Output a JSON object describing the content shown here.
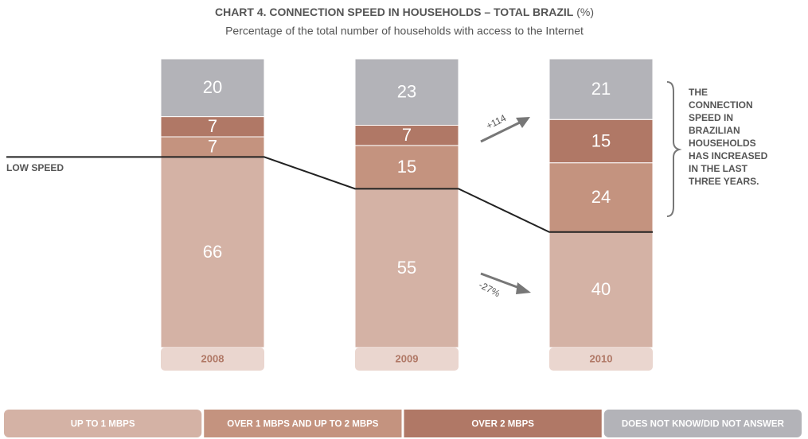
{
  "chart_data": {
    "type": "stacked_bar",
    "title": "CHART 4. CONNECTION SPEED IN HOUSEHOLDS – TOTAL BRAZIL",
    "title_unit": "(%)",
    "subtitle": "Percentage of the total number of households with access to the Internet",
    "categories": [
      "2008",
      "2009",
      "2010"
    ],
    "series": [
      {
        "name": "UP TO 1 MBPS",
        "color": "#d4b2a5",
        "values": [
          66,
          55,
          40
        ]
      },
      {
        "name": "OVER 1 MBPS AND UP TO 2 MBPS",
        "color": "#c4937f",
        "values": [
          7,
          15,
          24
        ]
      },
      {
        "name": "OVER 2 MBPS",
        "color": "#b07866",
        "values": [
          7,
          7,
          15
        ]
      },
      {
        "name": "DOES NOT KNOW/DID NOT ANSWER",
        "color": "#b3b3b8",
        "values": [
          20,
          23,
          21
        ]
      }
    ],
    "ylim": [
      0,
      100
    ],
    "annotations": {
      "line_label": "LOW SPEED",
      "increase": "+114",
      "decrease": "-27%",
      "note": [
        "THE",
        "CONNECTION",
        "SPEED IN",
        "BRAZILIAN",
        "HOUSEHOLDS",
        "HAS INCREASED",
        "IN THE LAST",
        "THREE YEARS."
      ]
    }
  }
}
